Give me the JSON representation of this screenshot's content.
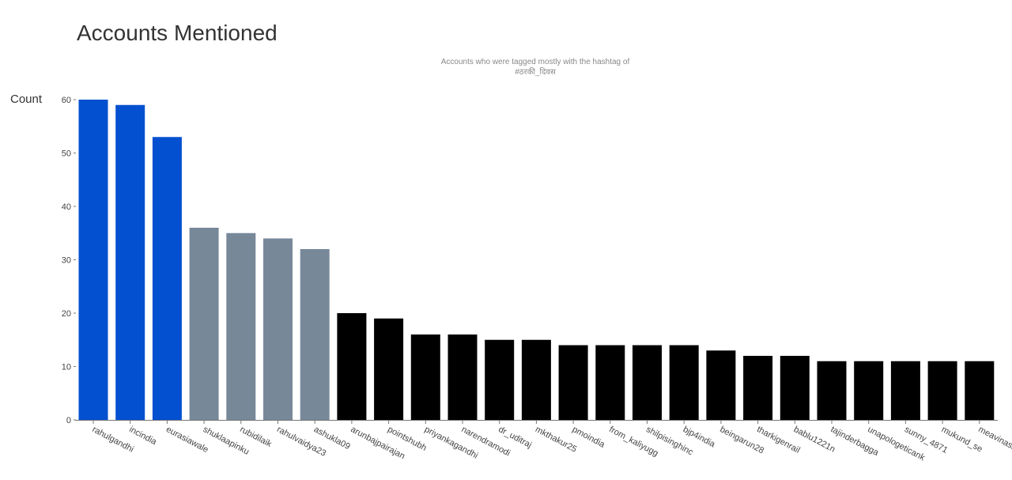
{
  "page": {
    "title": "Accounts Mentioned"
  },
  "chart_data": {
    "type": "bar",
    "subtitle_lines": [
      "Accounts who were tagged mostly with the hashtag of",
      "#ठरकी_दिवस"
    ],
    "ylabel": "Count",
    "xlabel": "",
    "ylim": [
      0,
      60
    ],
    "yticks": [
      0,
      10,
      20,
      30,
      40,
      50,
      60
    ],
    "grid": false,
    "categories": [
      "rahulgandhi",
      "incindia",
      "eurasiawale",
      "shuklaapinku",
      "rubidilaik",
      "rahulvaidya23",
      "ashukla09",
      "arunbajpairajan",
      "pointshubh",
      "priyankagandhi",
      "narendramodi",
      "dr_uditraj",
      "mkthakur25",
      "pmoindia",
      "from_kaliyugg",
      "shilpisinghinc",
      "bjp4india",
      "beingarun28",
      "tharkigenrail",
      "bablu1221n",
      "tajinderbagga",
      "unapologeticank",
      "sunny_4871",
      "mukund_se",
      "meavinash"
    ],
    "values": [
      60,
      59,
      53,
      36,
      35,
      34,
      32,
      20,
      19,
      16,
      16,
      15,
      15,
      14,
      14,
      14,
      14,
      13,
      12,
      12,
      11,
      11,
      11,
      11,
      11
    ],
    "bar_colors": [
      "#0350d0",
      "#0350d0",
      "#0350d0",
      "#778899",
      "#778899",
      "#778899",
      "#778899",
      "#000000",
      "#000000",
      "#000000",
      "#000000",
      "#000000",
      "#000000",
      "#000000",
      "#000000",
      "#000000",
      "#000000",
      "#000000",
      "#000000",
      "#000000",
      "#000000",
      "#000000",
      "#000000",
      "#000000",
      "#000000"
    ]
  }
}
